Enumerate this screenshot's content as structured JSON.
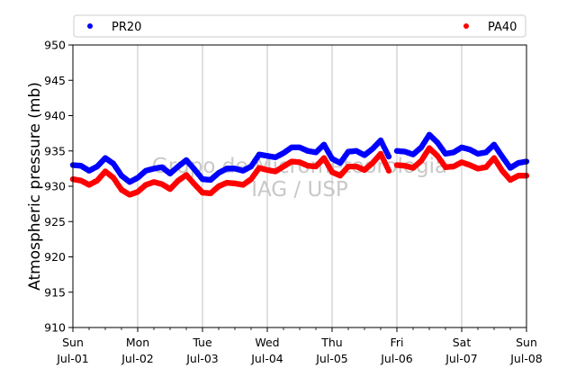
{
  "chart_data": {
    "type": "scatter",
    "title": "",
    "xlabel": "",
    "ylabel": "Atmospheric pressure (mb)",
    "ylim": [
      910,
      950
    ],
    "yticks": [
      910,
      915,
      920,
      925,
      930,
      935,
      940,
      945,
      950
    ],
    "xlim": [
      "2018-07-01",
      "2018-07-08"
    ],
    "xticks": [
      {
        "date": "2018-07-01",
        "day": "Sun",
        "label": "Jul-01"
      },
      {
        "date": "2018-07-02",
        "day": "Mon",
        "label": "Jul-02"
      },
      {
        "date": "2018-07-03",
        "day": "Tue",
        "label": "Jul-03"
      },
      {
        "date": "2018-07-04",
        "day": "Wed",
        "label": "Jul-04"
      },
      {
        "date": "2018-07-05",
        "day": "Thu",
        "label": "Jul-05"
      },
      {
        "date": "2018-07-06",
        "day": "Fri",
        "label": "Jul-06"
      },
      {
        "date": "2018-07-07",
        "day": "Sat",
        "label": "Jul-07"
      },
      {
        "date": "2018-07-08",
        "day": "Sun",
        "label": "Jul-08"
      }
    ],
    "grid": "vertical",
    "legend_position": "top",
    "watermark": [
      "Grupo de Micrometeorologia",
      "IAG / USP"
    ],
    "series": [
      {
        "name": "PR20",
        "color": "#0000ff",
        "points": [
          [
            "2018-07-01 00:00",
            933.0
          ],
          [
            "2018-07-01 03:00",
            932.9
          ],
          [
            "2018-07-01 06:00",
            932.2
          ],
          [
            "2018-07-01 09:00",
            932.8
          ],
          [
            "2018-07-01 12:00",
            934.0
          ],
          [
            "2018-07-01 15:00",
            933.2
          ],
          [
            "2018-07-01 18:00",
            931.5
          ],
          [
            "2018-07-01 21:00",
            930.6
          ],
          [
            "2018-07-02 00:00",
            931.2
          ],
          [
            "2018-07-02 03:00",
            932.2
          ],
          [
            "2018-07-02 06:00",
            932.5
          ],
          [
            "2018-07-02 09:00",
            932.7
          ],
          [
            "2018-07-02 12:00",
            931.8
          ],
          [
            "2018-07-02 15:00",
            932.8
          ],
          [
            "2018-07-02 18:00",
            933.7
          ],
          [
            "2018-07-02 21:00",
            932.4
          ],
          [
            "2018-07-03 00:00",
            931.0
          ],
          [
            "2018-07-03 03:00",
            930.9
          ],
          [
            "2018-07-03 06:00",
            931.9
          ],
          [
            "2018-07-03 09:00",
            932.5
          ],
          [
            "2018-07-03 12:00",
            932.5
          ],
          [
            "2018-07-03 15:00",
            932.2
          ],
          [
            "2018-07-03 18:00",
            932.8
          ],
          [
            "2018-07-03 21:00",
            934.5
          ],
          [
            "2018-07-04 00:00",
            934.3
          ],
          [
            "2018-07-04 03:00",
            934.1
          ],
          [
            "2018-07-04 06:00",
            934.7
          ],
          [
            "2018-07-04 09:00",
            935.5
          ],
          [
            "2018-07-04 12:00",
            935.5
          ],
          [
            "2018-07-04 15:00",
            935.0
          ],
          [
            "2018-07-04 18:00",
            934.8
          ],
          [
            "2018-07-04 21:00",
            935.9
          ],
          [
            "2018-07-05 00:00",
            933.9
          ],
          [
            "2018-07-05 03:00",
            933.3
          ],
          [
            "2018-07-05 06:00",
            934.9
          ],
          [
            "2018-07-05 09:00",
            935.0
          ],
          [
            "2018-07-05 12:00",
            934.4
          ],
          [
            "2018-07-05 15:00",
            935.3
          ],
          [
            "2018-07-05 18:00",
            936.5
          ],
          [
            "2018-07-05 21:00",
            934.2
          ],
          null,
          [
            "2018-07-06 00:00",
            935.0
          ],
          [
            "2018-07-06 03:00",
            934.9
          ],
          [
            "2018-07-06 06:00",
            934.5
          ],
          [
            "2018-07-06 09:00",
            935.5
          ],
          [
            "2018-07-06 12:00",
            937.3
          ],
          [
            "2018-07-06 15:00",
            936.2
          ],
          [
            "2018-07-06 18:00",
            934.6
          ],
          [
            "2018-07-06 21:00",
            934.8
          ],
          [
            "2018-07-07 00:00",
            935.5
          ],
          [
            "2018-07-07 03:00",
            935.2
          ],
          [
            "2018-07-07 06:00",
            934.6
          ],
          [
            "2018-07-07 09:00",
            934.8
          ],
          [
            "2018-07-07 12:00",
            935.9
          ],
          [
            "2018-07-07 15:00",
            934.2
          ],
          [
            "2018-07-07 18:00",
            932.6
          ],
          [
            "2018-07-07 21:00",
            933.3
          ],
          [
            "2018-07-08 00:00",
            933.5
          ]
        ]
      },
      {
        "name": "PA40",
        "color": "#ff0000",
        "points": [
          [
            "2018-07-01 00:00",
            931.0
          ],
          [
            "2018-07-01 03:00",
            930.8
          ],
          [
            "2018-07-01 06:00",
            930.2
          ],
          [
            "2018-07-01 09:00",
            930.8
          ],
          [
            "2018-07-01 12:00",
            932.1
          ],
          [
            "2018-07-01 15:00",
            931.2
          ],
          [
            "2018-07-01 18:00",
            929.5
          ],
          [
            "2018-07-01 21:00",
            928.8
          ],
          [
            "2018-07-02 00:00",
            929.2
          ],
          [
            "2018-07-02 03:00",
            930.2
          ],
          [
            "2018-07-02 06:00",
            930.6
          ],
          [
            "2018-07-02 09:00",
            930.3
          ],
          [
            "2018-07-02 12:00",
            929.6
          ],
          [
            "2018-07-02 15:00",
            930.8
          ],
          [
            "2018-07-02 18:00",
            931.6
          ],
          [
            "2018-07-02 21:00",
            930.3
          ],
          [
            "2018-07-03 00:00",
            929.1
          ],
          [
            "2018-07-03 03:00",
            929.0
          ],
          [
            "2018-07-03 06:00",
            930.0
          ],
          [
            "2018-07-03 09:00",
            930.5
          ],
          [
            "2018-07-03 12:00",
            930.4
          ],
          [
            "2018-07-03 15:00",
            930.2
          ],
          [
            "2018-07-03 18:00",
            931.0
          ],
          [
            "2018-07-03 21:00",
            932.6
          ],
          [
            "2018-07-04 00:00",
            932.3
          ],
          [
            "2018-07-04 03:00",
            932.1
          ],
          [
            "2018-07-04 06:00",
            932.8
          ],
          [
            "2018-07-04 09:00",
            933.5
          ],
          [
            "2018-07-04 12:00",
            933.4
          ],
          [
            "2018-07-04 15:00",
            932.9
          ],
          [
            "2018-07-04 18:00",
            932.8
          ],
          [
            "2018-07-04 21:00",
            934.0
          ],
          [
            "2018-07-05 00:00",
            932.0
          ],
          [
            "2018-07-05 03:00",
            931.5
          ],
          [
            "2018-07-05 06:00",
            932.8
          ],
          [
            "2018-07-05 09:00",
            932.8
          ],
          [
            "2018-07-05 12:00",
            932.3
          ],
          [
            "2018-07-05 15:00",
            933.3
          ],
          [
            "2018-07-05 18:00",
            934.6
          ],
          [
            "2018-07-05 21:00",
            932.2
          ],
          null,
          [
            "2018-07-06 00:00",
            933.0
          ],
          [
            "2018-07-06 03:00",
            932.9
          ],
          [
            "2018-07-06 06:00",
            932.6
          ],
          [
            "2018-07-06 09:00",
            933.6
          ],
          [
            "2018-07-06 12:00",
            935.4
          ],
          [
            "2018-07-06 15:00",
            934.3
          ],
          [
            "2018-07-06 18:00",
            932.7
          ],
          [
            "2018-07-06 21:00",
            932.8
          ],
          [
            "2018-07-07 00:00",
            933.4
          ],
          [
            "2018-07-07 03:00",
            933.0
          ],
          [
            "2018-07-07 06:00",
            932.5
          ],
          [
            "2018-07-07 09:00",
            932.7
          ],
          [
            "2018-07-07 12:00",
            934.0
          ],
          [
            "2018-07-07 15:00",
            932.2
          ],
          [
            "2018-07-07 18:00",
            930.9
          ],
          [
            "2018-07-07 21:00",
            931.5
          ],
          [
            "2018-07-08 00:00",
            931.5
          ]
        ]
      }
    ]
  }
}
